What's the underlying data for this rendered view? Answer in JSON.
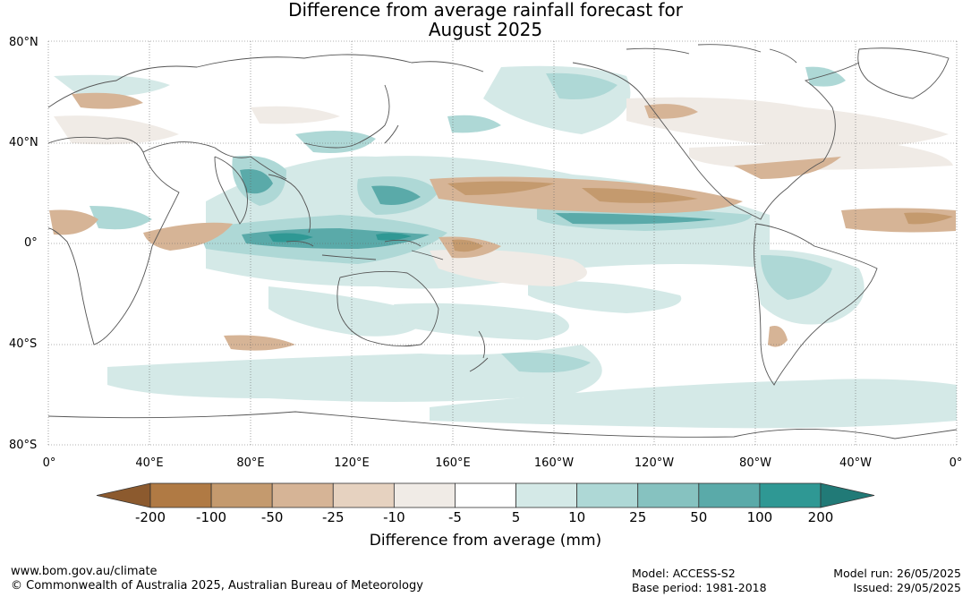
{
  "title": {
    "line1": "Difference from average rainfall forecast for",
    "line2": "August 2025"
  },
  "map": {
    "lat_labels": [
      "80°N",
      "40°N",
      "0°",
      "40°S",
      "80°S"
    ],
    "lon_labels": [
      "0°",
      "40°E",
      "80°E",
      "120°E",
      "160°E",
      "160°W",
      "120°W",
      "80°W",
      "40°W",
      "0°"
    ]
  },
  "colorbar": {
    "title": "Difference from average (mm)",
    "ticks": [
      "-200",
      "-100",
      "-50",
      "-25",
      "-10",
      "-5",
      "5",
      "10",
      "25",
      "50",
      "100",
      "200"
    ],
    "colors": [
      "#8c5a2e",
      "#b07a44",
      "#c49a6e",
      "#d6b496",
      "#e6d2c0",
      "#f0ebe6",
      "#ffffff",
      "#d4e9e7",
      "#aed8d6",
      "#86c2c0",
      "#5aaaa9",
      "#2f9894",
      "#217a77"
    ]
  },
  "footer": {
    "url": "www.bom.gov.au/climate",
    "copyright": "© Commonwealth of Australia 2025, Australian Bureau of Meteorology",
    "model": "Model: ACCESS-S2",
    "base_period": "Base period: 1981-2018",
    "model_run": "Model run: 26/05/2025",
    "issued": "Issued: 29/05/2025"
  }
}
